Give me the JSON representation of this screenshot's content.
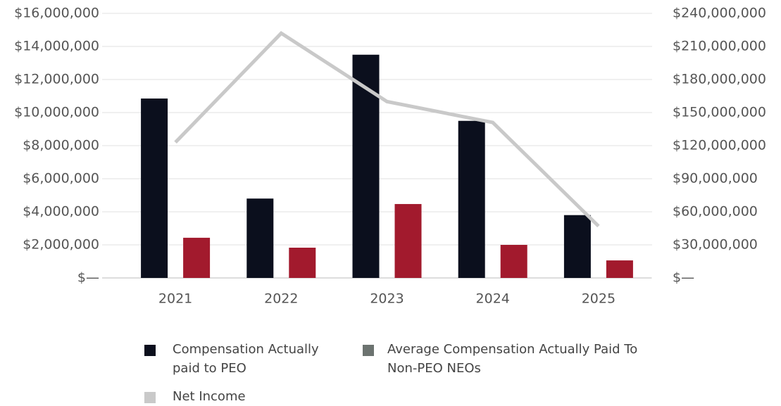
{
  "chart_data": {
    "type": "bar",
    "categories": [
      "2021",
      "2022",
      "2023",
      "2024",
      "2025"
    ],
    "series": [
      {
        "name": "Compensation Actually paid to PEO",
        "color": "#0b0f1d",
        "values": [
          10850000,
          4800000,
          13500000,
          9500000,
          3800000
        ]
      },
      {
        "name": "Average Compensation Actually Paid To Non-PEO NEOs",
        "color": "#a21a2d",
        "legend_color": "#6c7370",
        "values": [
          2430000,
          1830000,
          4470000,
          2000000,
          1060000
        ]
      },
      {
        "name": "Net Income",
        "type": "line",
        "axis": "y2",
        "color": "#c9c9c9",
        "values": [
          123000000,
          222000000,
          160000000,
          141000000,
          47000000
        ]
      }
    ],
    "ylim": [
      0,
      16000000
    ],
    "yticks": [
      {
        "value": 0,
        "label": "$—"
      },
      {
        "value": 2000000,
        "label": "$2,000,000"
      },
      {
        "value": 4000000,
        "label": "$4,000,000"
      },
      {
        "value": 6000000,
        "label": "$6,000,000"
      },
      {
        "value": 8000000,
        "label": "$8,000,000"
      },
      {
        "value": 10000000,
        "label": "$10,000,000"
      },
      {
        "value": 12000000,
        "label": "$12,000,000"
      },
      {
        "value": 14000000,
        "label": "$14,000,000"
      },
      {
        "value": 16000000,
        "label": "$16,000,000"
      }
    ],
    "y2lim": [
      0,
      240000000
    ],
    "y2ticks": [
      {
        "value": 0,
        "label": "$—"
      },
      {
        "value": 30000000,
        "label": "$30,000,000"
      },
      {
        "value": 60000000,
        "label": "$60,000,000"
      },
      {
        "value": 90000000,
        "label": "$90,000,000"
      },
      {
        "value": 120000000,
        "label": "$120,000,000"
      },
      {
        "value": 150000000,
        "label": "$150,000,000"
      },
      {
        "value": 180000000,
        "label": "$180,000,000"
      },
      {
        "value": 210000000,
        "label": "$210,000,000"
      },
      {
        "value": 240000000,
        "label": "$240,000,000"
      }
    ],
    "grid": true
  }
}
